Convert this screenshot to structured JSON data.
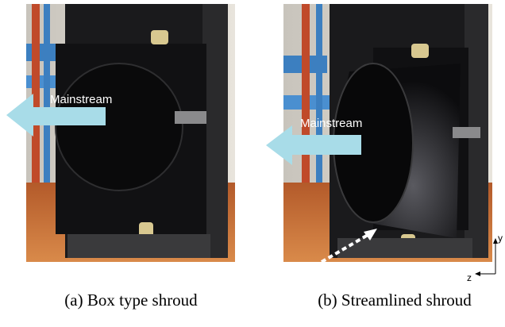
{
  "figure": {
    "panels": [
      {
        "label": "Mainstream",
        "caption": "(a) Box type shroud"
      },
      {
        "label": "Mainstream",
        "caption": "(b) Streamlined shroud"
      }
    ],
    "axes": {
      "y": "y",
      "z": "z"
    }
  }
}
